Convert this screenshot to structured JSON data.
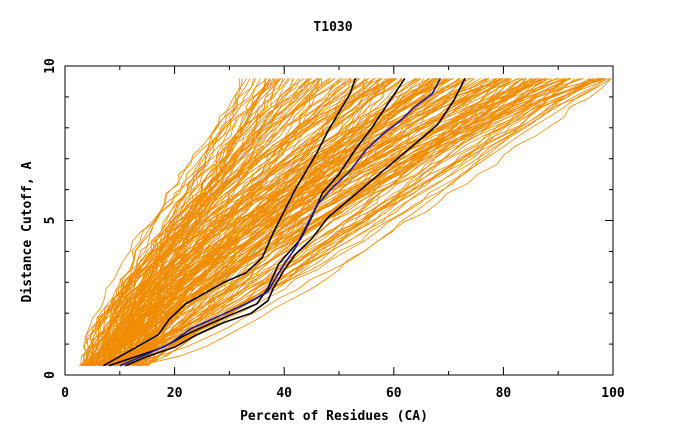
{
  "chart_data": {
    "type": "line",
    "title": "T1030",
    "xlabel": "Percent of Residues (CA)",
    "ylabel": "Distance Cutoff, A",
    "xlim": [
      0,
      100
    ],
    "ylim": [
      0,
      10
    ],
    "x_ticks": [
      0,
      20,
      40,
      60,
      80,
      100
    ],
    "x_tick_labels": [
      "0",
      "20",
      "40",
      "60",
      "80",
      "100"
    ],
    "y_ticks": [
      0,
      5,
      10
    ],
    "y_tick_labels": [
      "0",
      "5",
      "10"
    ],
    "grid": false,
    "background_series": {
      "color": "#f08c00",
      "count": 220,
      "y_start": 0.3,
      "y_end": 9.6,
      "x_at_start_range": [
        3,
        15
      ],
      "x_at_end_range": [
        32,
        100
      ]
    },
    "series": [
      {
        "color": "#000000",
        "x": [
          7,
          12,
          17,
          19,
          22,
          25,
          29,
          33,
          36,
          38,
          40,
          42,
          44,
          46,
          48,
          50,
          52,
          53
        ],
        "y": [
          0.3,
          0.8,
          1.3,
          1.8,
          2.3,
          2.6,
          3.0,
          3.3,
          3.8,
          4.6,
          5.3,
          6.0,
          6.6,
          7.2,
          7.9,
          8.5,
          9.1,
          9.6
        ]
      },
      {
        "color": "#000000",
        "x": [
          8,
          13,
          18,
          22,
          27,
          31,
          35,
          37,
          39,
          41,
          43,
          45,
          47,
          50,
          53,
          56,
          59,
          62
        ],
        "y": [
          0.3,
          0.6,
          0.9,
          1.3,
          1.7,
          2.0,
          2.3,
          2.8,
          3.6,
          4.0,
          4.4,
          5.1,
          5.9,
          6.5,
          7.3,
          8.0,
          8.8,
          9.6
        ]
      },
      {
        "color": "#1a1aa0",
        "x": [
          10,
          14,
          19,
          23,
          28,
          33,
          37,
          38,
          40,
          42,
          44,
          46,
          49,
          52,
          55,
          58,
          61,
          64,
          67,
          68.5
        ],
        "y": [
          0.3,
          0.6,
          1.0,
          1.5,
          1.9,
          2.3,
          2.7,
          3.0,
          3.6,
          4.1,
          4.8,
          5.5,
          6.1,
          6.6,
          7.3,
          7.8,
          8.2,
          8.7,
          9.1,
          9.6
        ]
      },
      {
        "color": "#000000",
        "x": [
          11,
          15,
          20,
          24,
          29,
          34,
          37,
          38,
          40,
          42,
          45,
          48,
          52,
          56,
          60,
          64,
          68,
          71,
          73
        ],
        "y": [
          0.3,
          0.6,
          0.9,
          1.3,
          1.7,
          2.0,
          2.4,
          2.8,
          3.4,
          3.9,
          4.4,
          5.1,
          5.7,
          6.3,
          6.9,
          7.5,
          8.1,
          8.9,
          9.6
        ]
      }
    ]
  }
}
